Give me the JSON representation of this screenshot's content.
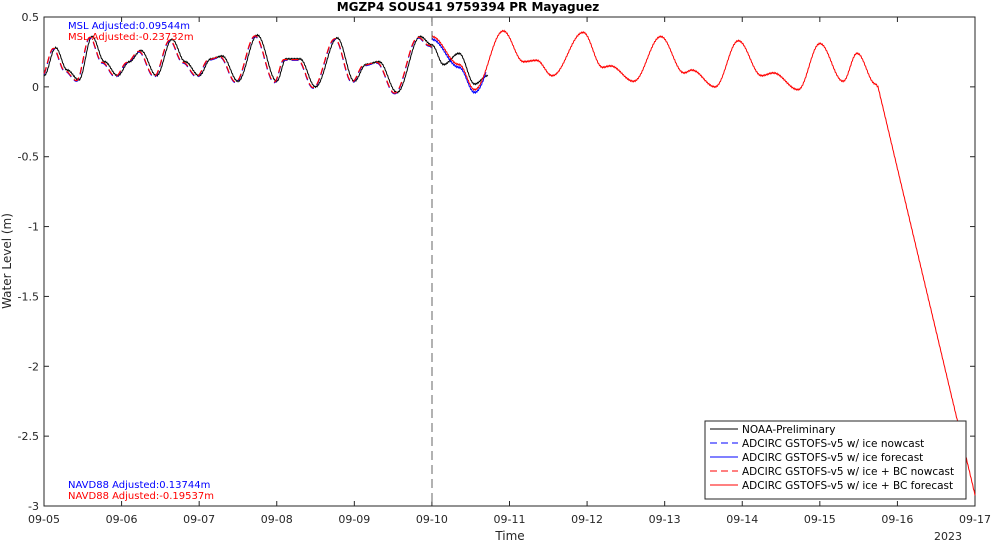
{
  "chart_data": {
    "type": "line",
    "title": "MGZP4 SOUS41 9759394 PR Mayaguez",
    "xlabel": "Time",
    "ylabel": "Water Level (m)",
    "xlim": [
      "09-05",
      "09-17"
    ],
    "ylim": [
      -3,
      0.5
    ],
    "x_ticks": [
      "09-05",
      "09-06",
      "09-07",
      "09-08",
      "09-09",
      "09-10",
      "09-11",
      "09-12",
      "09-13",
      "09-14",
      "09-15",
      "09-16",
      "09-17"
    ],
    "y_ticks": [
      "0.5",
      "0",
      "-0.5",
      "-1",
      "-1.5",
      "-2",
      "-2.5",
      "-3"
    ],
    "year_label": "2023",
    "nowcast_forecast_divider": "09-10",
    "grid": false,
    "legend_position": "bottom-right",
    "legend": [
      {
        "label": "NOAA-Preliminary",
        "color": "#000000",
        "dash": "solid"
      },
      {
        "label": "ADCIRC GSTOFS-v5 w/ ice nowcast",
        "color": "#0000ff",
        "dash": "dashed"
      },
      {
        "label": "ADCIRC GSTOFS-v5 w/ ice forecast",
        "color": "#0000ff",
        "dash": "solid"
      },
      {
        "label": "ADCIRC GSTOFS-v5 w/ ice + BC nowcast",
        "color": "#ff0000",
        "dash": "dashed"
      },
      {
        "label": "ADCIRC GSTOFS-v5 w/ ice + BC forecast",
        "color": "#ff0000",
        "dash": "solid"
      }
    ],
    "annotations": {
      "msl_blue": "MSL Adjusted:0.09544m",
      "msl_red": "MSL Adjusted:-0.23732m",
      "navd_blue": "NAVD88 Adjusted:0.13744m",
      "navd_red": "NAVD88 Adjusted:-0.19537m"
    },
    "series": [
      {
        "name": "NOAA-Preliminary",
        "color": "#000000",
        "x_day_start": "09-05",
        "x_day_end": "09-10.75",
        "peaks": [
          [
            "09-05.00",
            0.08
          ],
          [
            "09-05.15",
            0.28
          ],
          [
            "09-05.30",
            0.12
          ],
          [
            "09-05.45",
            0.05
          ],
          [
            "09-05.62",
            0.36
          ],
          [
            "09-05.78",
            0.18
          ],
          [
            "09-05.95",
            0.08
          ],
          [
            "09-06.10",
            0.18
          ],
          [
            "09-06.25",
            0.26
          ],
          [
            "09-06.45",
            0.08
          ],
          [
            "09-06.65",
            0.34
          ],
          [
            "09-06.82",
            0.18
          ],
          [
            "09-07.00",
            0.08
          ],
          [
            "09-07.15",
            0.2
          ],
          [
            "09-07.30",
            0.22
          ],
          [
            "09-07.50",
            0.04
          ],
          [
            "09-07.75",
            0.37
          ],
          [
            "09-08.00",
            0.04
          ],
          [
            "09-08.12",
            0.2
          ],
          [
            "09-08.30",
            0.2
          ],
          [
            "09-08.50",
            0.0
          ],
          [
            "09-08.78",
            0.35
          ],
          [
            "09-09.00",
            0.04
          ],
          [
            "09-09.15",
            0.16
          ],
          [
            "09-09.32",
            0.18
          ],
          [
            "09-09.55",
            -0.04
          ],
          [
            "09-09.85",
            0.36
          ],
          [
            "09-10.00",
            0.3
          ],
          [
            "09-10.15",
            0.16
          ],
          [
            "09-10.35",
            0.24
          ],
          [
            "09-10.55",
            0.02
          ],
          [
            "09-10.72",
            0.08
          ]
        ]
      },
      {
        "name": "ADCIRC GSTOFS-v5 w/ ice nowcast",
        "color": "#0000ff",
        "x_day_start": "09-05",
        "x_day_end": "09-10"
      },
      {
        "name": "ADCIRC GSTOFS-v5 w/ ice forecast",
        "color": "#0000ff",
        "x_day_start": "09-10",
        "x_day_end": "09-10.7"
      },
      {
        "name": "ADCIRC GSTOFS-v5 w/ ice + BC nowcast",
        "color": "#ff0000",
        "x_day_start": "09-05",
        "x_day_end": "09-10"
      },
      {
        "name": "ADCIRC GSTOFS-v5 w/ ice + BC forecast",
        "color": "#ff0000",
        "x_day_start": "09-10",
        "x_day_end": "09-17",
        "peaks": [
          [
            "09-10.00",
            0.36
          ],
          [
            "09-10.35",
            0.16
          ],
          [
            "09-10.55",
            -0.02
          ],
          [
            "09-10.92",
            0.4
          ],
          [
            "09-11.18",
            0.18
          ],
          [
            "09-11.35",
            0.19
          ],
          [
            "09-11.55",
            0.08
          ],
          [
            "09-11.95",
            0.39
          ],
          [
            "09-12.20",
            0.14
          ],
          [
            "09-12.30",
            0.15
          ],
          [
            "09-12.60",
            0.04
          ],
          [
            "09-12.95",
            0.36
          ],
          [
            "09-13.25",
            0.1
          ],
          [
            "09-13.35",
            0.12
          ],
          [
            "09-13.65",
            0.0
          ],
          [
            "09-13.95",
            0.33
          ],
          [
            "09-14.25",
            0.08
          ],
          [
            "09-14.40",
            0.1
          ],
          [
            "09-14.72",
            -0.02
          ],
          [
            "09-15.00",
            0.31
          ],
          [
            "09-15.30",
            0.04
          ],
          [
            "09-15.48",
            0.24
          ],
          [
            "09-15.72",
            0.02
          ],
          [
            "09-15.75",
            0.0
          ],
          [
            "09-17.00",
            -2.92
          ]
        ]
      }
    ]
  }
}
